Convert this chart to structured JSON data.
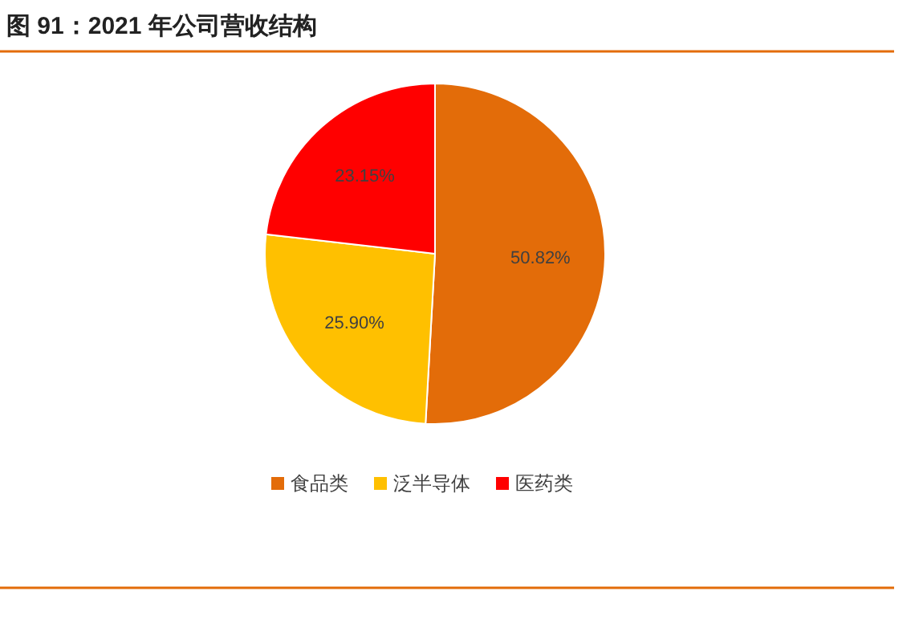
{
  "chart_data": {
    "type": "pie",
    "title": "图 91：2021 年公司营收结构",
    "categories": [
      "食品类",
      "泛半导体",
      "医药类"
    ],
    "values": [
      50.82,
      25.9,
      23.15
    ],
    "colors": [
      "#e36c09",
      "#ffc000",
      "#ff0000"
    ],
    "value_labels": [
      "50.82%",
      "25.90%",
      "23.15%"
    ],
    "legend": "bottom"
  }
}
